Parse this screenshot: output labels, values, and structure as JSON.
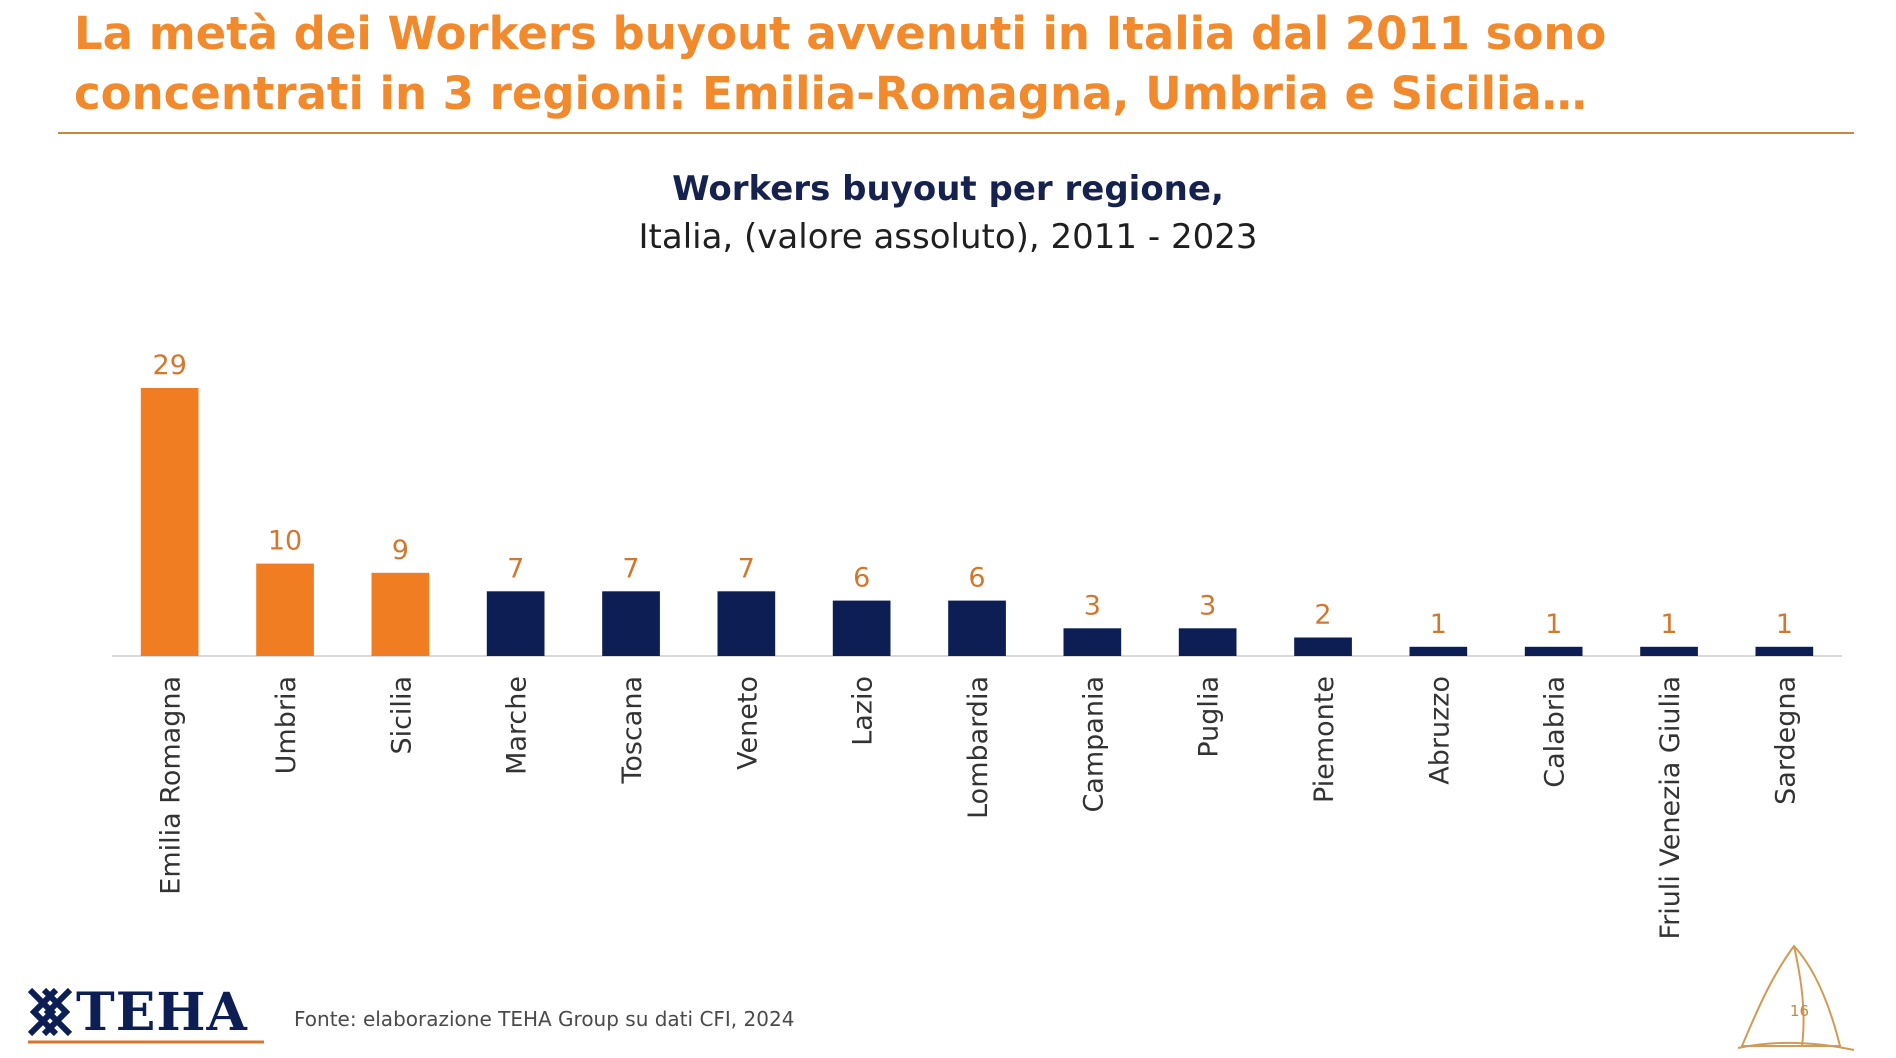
{
  "headline": {
    "line1": "La metà dei Workers buyout avvenuti in Italia dal 2011 sono",
    "line2": "concentrati in 3 regioni: Emilia-Romagna, Umbria e Sicilia…"
  },
  "chart_data": {
    "type": "bar",
    "title": "Workers buyout per regione,",
    "subtitle": "Italia, (valore assoluto), 2011 - 2023",
    "xlabel": "",
    "ylabel": "",
    "ylim": [
      0,
      29
    ],
    "grid": false,
    "legend": "none",
    "categories": [
      "Emilia Romagna",
      "Umbria",
      "Sicilia",
      "Marche",
      "Toscana",
      "Veneto",
      "Lazio",
      "Lombardia",
      "Campania",
      "Puglia",
      "Piemonte",
      "Abruzzo",
      "Calabria",
      "Friuli Venezia Giulia",
      "Sardegna"
    ],
    "values": [
      29,
      10,
      9,
      7,
      7,
      7,
      6,
      6,
      3,
      3,
      2,
      1,
      1,
      1,
      1
    ],
    "highlight_count": 3,
    "colors": {
      "highlight": "#f07d22",
      "default": "#0c1e54",
      "highlight_label": "#d1782e",
      "default_label": "#d1782e",
      "axis_label": "#333333",
      "baseline": "#d9d9d9"
    }
  },
  "footer": {
    "logo_text": "TEHA",
    "logo_icon": "teha-knot-icon",
    "source": "Fonte: elaborazione TEHA Group su dati CFI, 2024",
    "page_number": "16",
    "sail_icon": "sail-icon"
  },
  "colors": {
    "accent": "#f08a2c",
    "navy": "#15224e",
    "rule": "#c8893c"
  }
}
